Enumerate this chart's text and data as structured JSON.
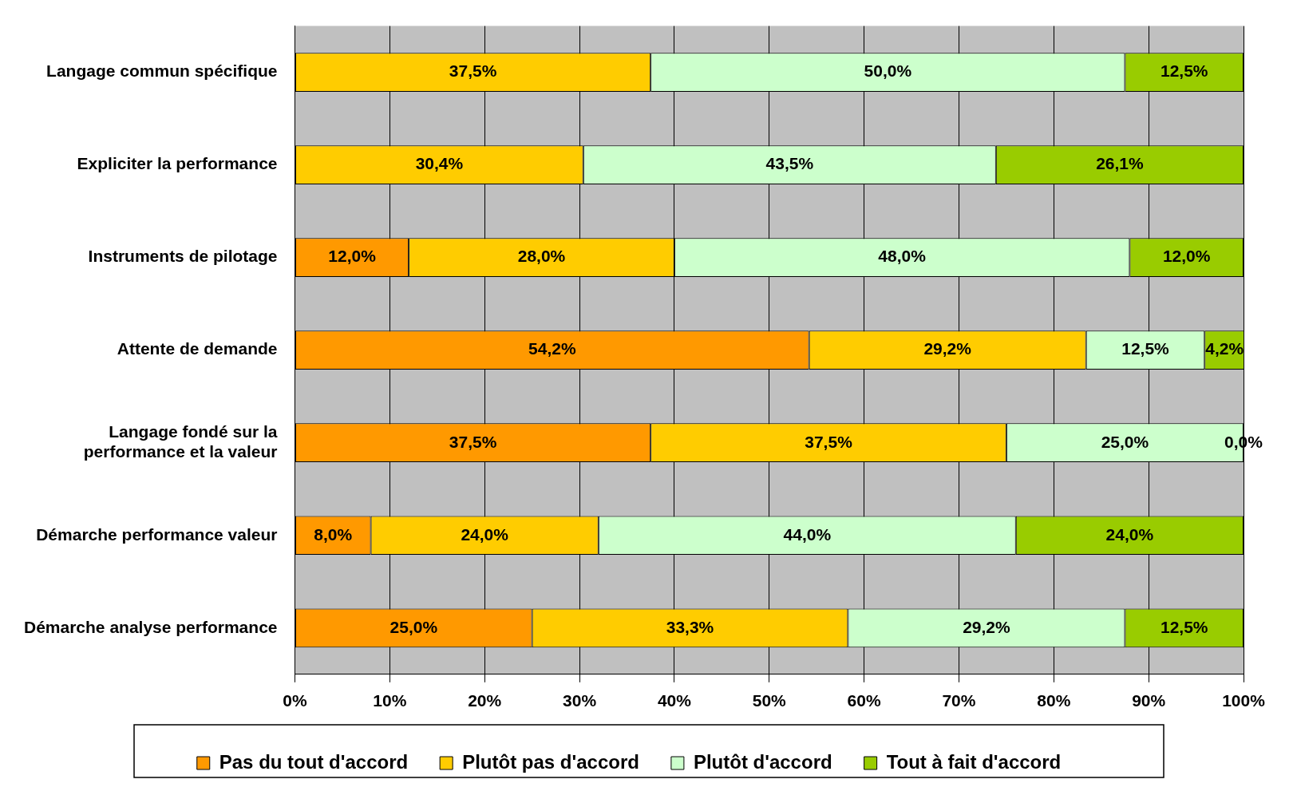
{
  "chart_data": {
    "type": "bar",
    "orientation": "horizontal",
    "stacked": true,
    "categories": [
      "Langage commun spécifique",
      "Expliciter la performance",
      "Instruments de pilotage",
      "Attente de demande",
      "Langage fondé sur la performance et la valeur",
      "Démarche performance valeur",
      "Démarche analyse performance"
    ],
    "series": [
      {
        "name": "Pas du tout d'accord",
        "color": "#ff9900",
        "values": [
          null,
          null,
          12.0,
          54.2,
          37.5,
          8.0,
          25.0
        ],
        "value_labels": [
          null,
          null,
          "12,0%",
          "54,2%",
          "37,5%",
          "8,0%",
          "25,0%"
        ]
      },
      {
        "name": "Plutôt pas d'accord",
        "color": "#ffcc00",
        "values": [
          37.5,
          30.4,
          28.0,
          29.2,
          37.5,
          24.0,
          33.3
        ],
        "value_labels": [
          "37,5%",
          "30,4%",
          "28,0%",
          "29,2%",
          "37,5%",
          "24,0%",
          "33,3%"
        ]
      },
      {
        "name": "Plutôt d'accord",
        "color": "#ccffcc",
        "values": [
          50.0,
          43.5,
          48.0,
          12.5,
          25.0,
          44.0,
          29.2
        ],
        "value_labels": [
          "50,0%",
          "43,5%",
          "48,0%",
          "12,5%",
          "25,0%",
          "44,0%",
          "29,2%"
        ]
      },
      {
        "name": "Tout à fait d'accord",
        "color": "#99cc00",
        "values": [
          12.5,
          26.1,
          12.0,
          4.2,
          0.0,
          24.0,
          12.5
        ],
        "value_labels": [
          "12,5%",
          "26,1%",
          "12,0%",
          "4,2%",
          "0,0%",
          "24,0%",
          "12,5%"
        ]
      }
    ],
    "xlim": [
      0,
      100
    ],
    "xticks": [
      {
        "value": 0,
        "label": "0%"
      },
      {
        "value": 10,
        "label": "10%"
      },
      {
        "value": 20,
        "label": "20%"
      },
      {
        "value": 30,
        "label": "30%"
      },
      {
        "value": 40,
        "label": "40%"
      },
      {
        "value": 50,
        "label": "50%"
      },
      {
        "value": 60,
        "label": "60%"
      },
      {
        "value": 70,
        "label": "70%"
      },
      {
        "value": 80,
        "label": "80%"
      },
      {
        "value": 90,
        "label": "90%"
      },
      {
        "value": 100,
        "label": "100%"
      }
    ],
    "grid": "x",
    "legend": "bottom"
  }
}
